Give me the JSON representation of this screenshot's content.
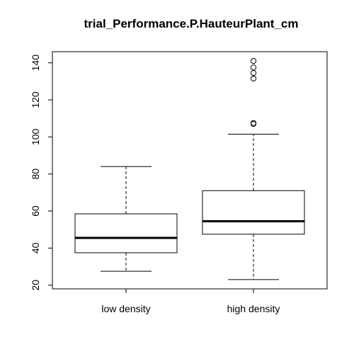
{
  "chart_data": {
    "type": "boxplot",
    "title": "trial_Performance.P.HauteurPlant_cm",
    "xlabel": "",
    "ylabel": "",
    "ylim": [
      18,
      146
    ],
    "yticks": [
      20,
      40,
      60,
      80,
      100,
      120,
      140
    ],
    "categories": [
      "low density",
      "high density"
    ],
    "boxes": [
      {
        "category": "low density",
        "whisker_low": 27.5,
        "q1": 37.5,
        "median": 45.5,
        "q3": 58.5,
        "whisker_high": 84,
        "outliers": []
      },
      {
        "category": "high density",
        "whisker_low": 23,
        "q1": 47.5,
        "median": 54.5,
        "q3": 71,
        "whisker_high": 101.5,
        "outliers": [
          107,
          107.5,
          131.5,
          134.5,
          137.5,
          141
        ]
      }
    ],
    "grid": false,
    "legend": "none"
  }
}
